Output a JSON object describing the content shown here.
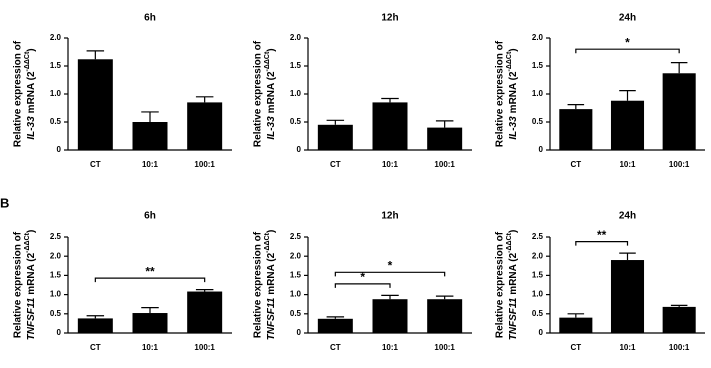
{
  "panel_label": "B",
  "chart_data": [
    {
      "type": "bar",
      "title": "6h",
      "ylabel": {
        "line1": "Relative expression of",
        "gene": "IL-33",
        "unit": "mRNA (2",
        "exponent": "-ΔΔCt",
        "close": ")"
      },
      "categories": [
        "CT",
        "10:1",
        "100:1"
      ],
      "values": [
        1.62,
        0.5,
        0.85
      ],
      "errors": [
        0.15,
        0.18,
        0.1
      ],
      "color": "#000000",
      "ylim": [
        0,
        2.0
      ],
      "yticks": [
        0,
        0.5,
        {
          "value": 1.0,
          "label": "1.0"
        },
        1.5,
        {
          "value": 2.0,
          "label": "2.0"
        }
      ],
      "annotations": []
    },
    {
      "type": "bar",
      "title": "12h",
      "ylabel": {
        "line1": "Relative expression of",
        "gene": "IL-33",
        "unit": "mRNA (2",
        "exponent": "-ΔΔCt",
        "close": ")"
      },
      "categories": [
        "CT",
        "10:1",
        "100:1"
      ],
      "values": [
        0.45,
        0.85,
        0.4
      ],
      "errors": [
        0.08,
        0.07,
        0.12
      ],
      "color": "#000000",
      "ylim": [
        0,
        2.0
      ],
      "yticks": [
        0,
        0.5,
        {
          "value": 1.0,
          "label": "1.0"
        },
        1.5,
        {
          "value": 2.0,
          "label": "2.0"
        }
      ],
      "annotations": []
    },
    {
      "type": "bar",
      "title": "24h",
      "ylabel": {
        "line1": "Relative expression of",
        "gene": "IL-33",
        "unit": "mRNA (2",
        "exponent": "-ΔΔCt",
        "close": ")"
      },
      "categories": [
        "CT",
        "10:1",
        "100:1"
      ],
      "values": [
        0.73,
        0.88,
        1.37
      ],
      "errors": [
        0.08,
        0.18,
        0.19
      ],
      "color": "#000000",
      "ylim": [
        0,
        2.0
      ],
      "yticks": [
        0,
        0.5,
        {
          "value": 1.0,
          "label": "1.0"
        },
        1.5,
        {
          "value": 2.0,
          "label": "2.0"
        }
      ],
      "annotations": [
        {
          "from": "CT",
          "to": "100:1",
          "label": "*"
        }
      ]
    },
    {
      "type": "bar",
      "title": "6h",
      "ylabel": {
        "line1": "Relative expression of",
        "gene": "TNFSF11",
        "unit": "mRNA (2",
        "exponent": "-ΔΔCt",
        "close": ")"
      },
      "categories": [
        "CT",
        "10:1",
        "100:1"
      ],
      "values": [
        0.38,
        0.52,
        1.08
      ],
      "errors": [
        0.07,
        0.14,
        0.05
      ],
      "color": "#000000",
      "ylim": [
        0,
        2.5
      ],
      "yticks": [
        0,
        0.5,
        {
          "value": 1.0,
          "label": "1.0"
        },
        1.5,
        {
          "value": 2.0,
          "label": "2.0"
        },
        2.5
      ],
      "annotations": [
        {
          "from": "CT",
          "to": "100:1",
          "label": "**"
        }
      ]
    },
    {
      "type": "bar",
      "title": "12h",
      "ylabel": {
        "line1": "Relative expression of",
        "gene": "TNFSF11",
        "unit": "mRNA (2",
        "exponent": "-ΔΔCt",
        "close": ")"
      },
      "categories": [
        "CT",
        "10:1",
        "100:1"
      ],
      "values": [
        0.37,
        0.88,
        0.88
      ],
      "errors": [
        0.05,
        0.1,
        0.08
      ],
      "color": "#000000",
      "ylim": [
        0,
        2.5
      ],
      "yticks": [
        0,
        0.5,
        {
          "value": 1.0,
          "label": "1.0"
        },
        1.5,
        {
          "value": 2.0,
          "label": "2.0"
        },
        2.5
      ],
      "annotations": [
        {
          "from": "CT",
          "to": "10:1",
          "label": "*"
        },
        {
          "from": "CT",
          "to": "100:1",
          "label": "*"
        }
      ]
    },
    {
      "type": "bar",
      "title": "24h",
      "ylabel": {
        "line1": "Relative expression of",
        "gene": "TNFSF11",
        "unit": "mRNA (2",
        "exponent": "-ΔΔCt",
        "close": ")"
      },
      "categories": [
        "CT",
        "10:1",
        "100:1"
      ],
      "values": [
        0.4,
        1.9,
        0.68
      ],
      "errors": [
        0.1,
        0.18,
        0.04
      ],
      "color": "#000000",
      "ylim": [
        0,
        2.5
      ],
      "yticks": [
        0,
        0.5,
        {
          "value": 1.0,
          "label": "1.0"
        },
        1.5,
        {
          "value": 2.0,
          "label": "2.0"
        },
        2.5
      ],
      "annotations": [
        {
          "from": "CT",
          "to": "10:1",
          "label": "**"
        }
      ]
    }
  ]
}
